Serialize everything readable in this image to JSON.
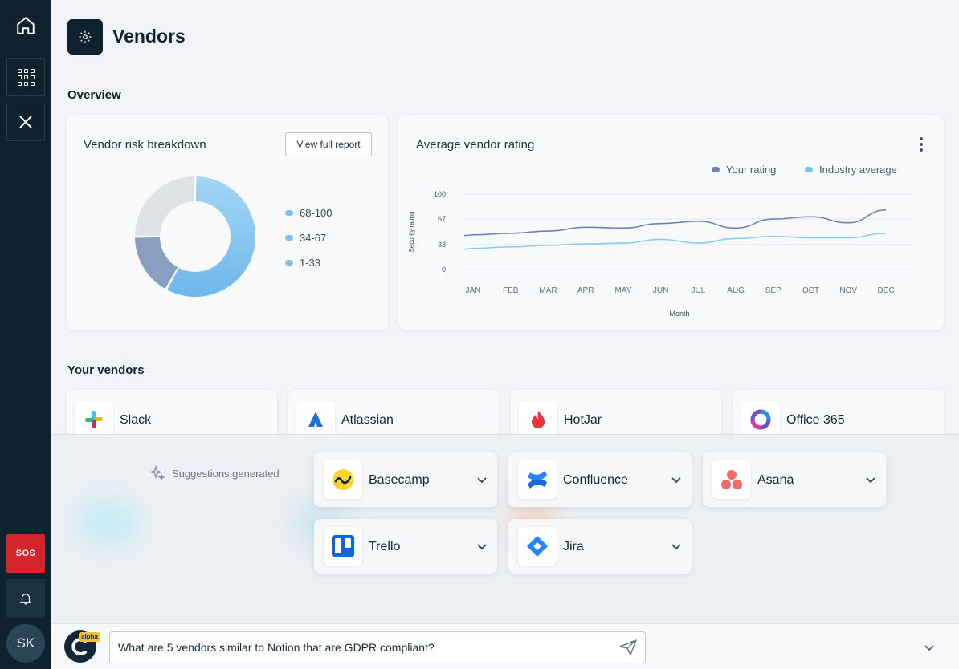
{
  "sidebar": {
    "sos_label": "SOS",
    "avatar_initials": "SK"
  },
  "page": {
    "title": "Vendors"
  },
  "overview": {
    "heading": "Overview",
    "risk_card": {
      "title": "Vendor risk breakdown",
      "button_label": "View full report",
      "legend": [
        "68-100",
        "34-67",
        "1-33"
      ],
      "slices": [
        {
          "name": "68-100",
          "value": 58,
          "color": "#8ccaf2"
        },
        {
          "name": "34-67",
          "value": 17,
          "color": "#8a9ec4"
        },
        {
          "name": "1-33",
          "value": 25,
          "color": "#dde2e6"
        }
      ]
    },
    "rating_card": {
      "title": "Average vendor rating",
      "legend": [
        {
          "label": "Your rating",
          "color": "#6a84b4"
        },
        {
          "label": "Industry average",
          "color": "#7cc0ec"
        }
      ]
    }
  },
  "chart_data": {
    "type": "line",
    "title": "Average vendor rating",
    "xlabel": "Month",
    "ylabel": "Security rating",
    "x": [
      "JAN",
      "FEB",
      "MAR",
      "APR",
      "MAY",
      "JUN",
      "JUL",
      "AUG",
      "SEP",
      "OCT",
      "NOV",
      "DEC"
    ],
    "y_ticks": [
      100,
      67,
      33,
      0
    ],
    "ylim": [
      0,
      100
    ],
    "series": [
      {
        "name": "Your rating",
        "color": "#6a84b4",
        "values": [
          46,
          48,
          51,
          56,
          55,
          61,
          64,
          55,
          67,
          70,
          62,
          79
        ]
      },
      {
        "name": "Industry average",
        "color": "#8ccaf2",
        "values": [
          28,
          30,
          32,
          34,
          35,
          40,
          35,
          41,
          44,
          42,
          42,
          48
        ]
      }
    ],
    "legend_position": "top-right",
    "grid": true
  },
  "vendors": {
    "heading": "Your vendors",
    "items": [
      {
        "name": "Slack",
        "icon": "slack-logo"
      },
      {
        "name": "Atlassian",
        "icon": "atlassian-logo"
      },
      {
        "name": "HotJar",
        "icon": "hotjar-logo"
      },
      {
        "name": "Office 365",
        "icon": "office-365-logo"
      }
    ]
  },
  "suggestions": {
    "label": "Suggestions generated",
    "items": [
      {
        "name": "Basecamp",
        "icon": "basecamp-logo"
      },
      {
        "name": "Confluence",
        "icon": "confluence-logo"
      },
      {
        "name": "Asana",
        "icon": "asana-logo"
      },
      {
        "name": "Trello",
        "icon": "trello-logo"
      },
      {
        "name": "Jira",
        "icon": "jira-logo"
      }
    ]
  },
  "assistant": {
    "badge": "alpha",
    "input_value": "What are 5 vendors similar to Notion that are GDPR compliant?"
  }
}
